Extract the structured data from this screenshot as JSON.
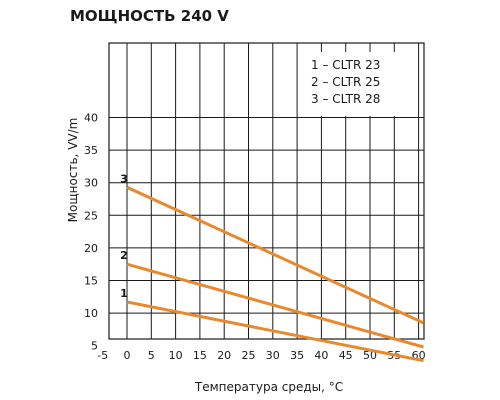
{
  "chart_data": {
    "type": "line",
    "title": "МОЩНОСТЬ 240 V",
    "xlabel": "Температура среды, °С",
    "ylabel": "Мощность, VV/m",
    "xlim": [
      -5,
      60
    ],
    "ylim": [
      0,
      45
    ],
    "xticks": [
      -5,
      0,
      5,
      10,
      15,
      20,
      25,
      30,
      35,
      40,
      45,
      50,
      55,
      60
    ],
    "yticks": [
      5,
      10,
      15,
      20,
      25,
      30,
      35,
      40
    ],
    "grid": true,
    "legend_position": "top-right",
    "series": [
      {
        "name": "1 – CLTR 23",
        "label": "1",
        "color": "#E8892E",
        "x": [
          0,
          61
        ],
        "y": [
          11.7,
          2.7
        ]
      },
      {
        "name": "2 – CLTR 25",
        "label": "2",
        "color": "#E8892E",
        "x": [
          0,
          61
        ],
        "y": [
          17.5,
          4.8
        ]
      },
      {
        "name": "3 – CLTR 28",
        "label": "3",
        "color": "#E8892E",
        "x": [
          0,
          61
        ],
        "y": [
          29.3,
          8.5
        ]
      }
    ]
  }
}
